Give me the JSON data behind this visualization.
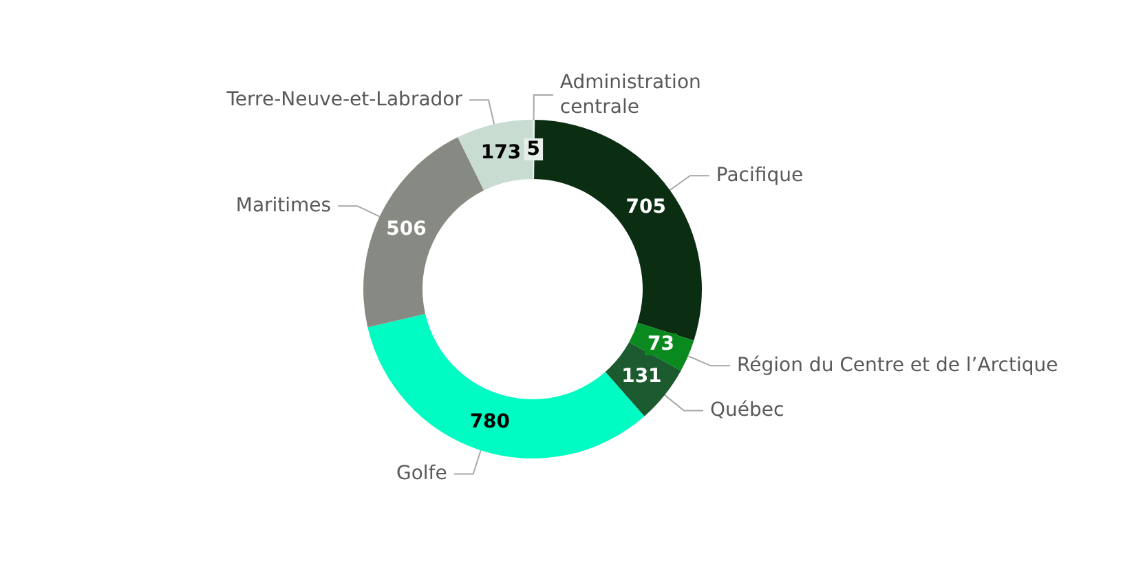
{
  "chart_data": {
    "type": "donut",
    "categories": [
      "Administration\ncentrale",
      "Pacifique",
      "Région du Centre et de l’Arctique",
      "Québec",
      "Golfe",
      "Maritimes",
      "Terre-Neuve-et-Labrador"
    ],
    "values": [
      5,
      705,
      73,
      131,
      780,
      506,
      173
    ],
    "colors": [
      "#e6efe9",
      "#0b2e13",
      "#0a8a1e",
      "#1c5a30",
      "#00fcc2",
      "#878a82",
      "#c8dcd2"
    ],
    "data_labels": true,
    "legend": false
  }
}
